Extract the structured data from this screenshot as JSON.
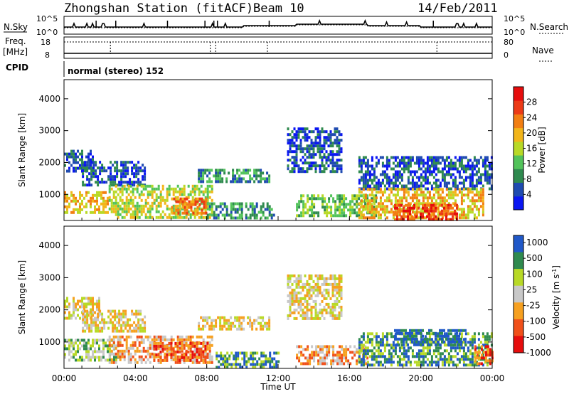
{
  "header": {
    "station": "Zhongshan Station (fitACF)",
    "beam": "Beam 10",
    "date": "14/Feb/2011"
  },
  "top_panels": {
    "nsky_label": "N.Sky",
    "nsky_ticks": [
      "10^5",
      "10^0"
    ],
    "nsearch_label": "N.Search",
    "nsearch_ticks": [
      "10^5",
      "10^0"
    ],
    "freq_label": "Freq.",
    "freq_unit": "[MHz]",
    "freq_ticks": [
      "18",
      "8"
    ],
    "nave_label": "Nave",
    "nave_ticks": [
      "80",
      "0"
    ],
    "cpid_label": "CPID",
    "cpid_text": "normal (stereo) 152"
  },
  "colors": {
    "power": [
      "#0a16f2",
      "#1f4bb0",
      "#2f8a4f",
      "#52c35a",
      "#b8d926",
      "#f2b51a",
      "#f27e12",
      "#ec3a16",
      "#e60d0d"
    ],
    "velocity": [
      "#e60d0d",
      "#f0501a",
      "#f6a020",
      "#c8c8c8",
      "#b8d926",
      "#2f8a4f",
      "#2058c8"
    ],
    "ground_scatter": "#c8c8c8"
  },
  "chart_data": [
    {
      "type": "heatmap",
      "name": "power",
      "ylabel": "Slant Range [km]",
      "yticks": [
        1000,
        2000,
        3000,
        4000
      ],
      "ylim": [
        180,
        4600
      ],
      "xlim_hours": [
        0,
        24
      ],
      "colorbar_label": "Power [dB]",
      "colorbar_ticks": [
        4,
        8,
        12,
        16,
        20,
        24,
        28
      ],
      "colorbar_range": [
        0,
        32
      ],
      "regions": [
        {
          "t": [
            0.0,
            1.6
          ],
          "r": [
            1700,
            2400
          ],
          "level": 1
        },
        {
          "t": [
            0.0,
            2.5
          ],
          "r": [
            450,
            1100
          ],
          "level": 5
        },
        {
          "t": [
            1.0,
            4.5
          ],
          "r": [
            1250,
            2050
          ],
          "level": 1
        },
        {
          "t": [
            2.5,
            8.3
          ],
          "r": [
            250,
            1300
          ],
          "level": 4
        },
        {
          "t": [
            6.0,
            8.0
          ],
          "r": [
            450,
            900
          ],
          "level": 6
        },
        {
          "t": [
            7.5,
            11.5
          ],
          "r": [
            1400,
            1800
          ],
          "level": 2
        },
        {
          "t": [
            8.0,
            11.8
          ],
          "r": [
            250,
            750
          ],
          "level": 2
        },
        {
          "t": [
            13.0,
            17.5
          ],
          "r": [
            300,
            1000
          ],
          "level": 3
        },
        {
          "t": [
            12.5,
            15.5
          ],
          "r": [
            1700,
            3100
          ],
          "level": 1
        },
        {
          "t": [
            16.5,
            24.0
          ],
          "r": [
            1200,
            2200
          ],
          "level": 1
        },
        {
          "t": [
            16.5,
            23.5
          ],
          "r": [
            300,
            1200
          ],
          "level": 5
        },
        {
          "t": [
            18.5,
            22.0
          ],
          "r": [
            250,
            700
          ],
          "level": 7
        }
      ]
    },
    {
      "type": "heatmap",
      "name": "velocity",
      "ylabel": "Slant Range [km]",
      "yticks": [
        1000,
        2000,
        3000,
        4000
      ],
      "ylim": [
        180,
        4600
      ],
      "xlim_hours": [
        0,
        24
      ],
      "xticks": [
        "00:00",
        "04:00",
        "08:00",
        "12:00",
        "16:00",
        "20:00",
        "00:00"
      ],
      "xlabel": "Time UT",
      "colorbar_label": "Velocity [m s",
      "colorbar_label_sup": "-1",
      "colorbar_label_end": "]",
      "colorbar_ticks": [
        "1000",
        "500",
        "100",
        "25",
        "-25",
        "-100",
        "-500",
        "-1000"
      ],
      "regions": [
        {
          "t": [
            0.0,
            2.0
          ],
          "r": [
            1700,
            2400
          ],
          "level": 3
        },
        {
          "t": [
            1.0,
            4.5
          ],
          "r": [
            1300,
            2000
          ],
          "level": 3
        },
        {
          "t": [
            0.0,
            3.0
          ],
          "r": [
            450,
            1100
          ],
          "level": 4
        },
        {
          "t": [
            2.5,
            8.3
          ],
          "r": [
            350,
            1200
          ],
          "level": 2
        },
        {
          "t": [
            5.0,
            8.0
          ],
          "r": [
            450,
            1000
          ],
          "level": 1
        },
        {
          "t": [
            7.5,
            11.5
          ],
          "r": [
            1400,
            1800
          ],
          "level": 3
        },
        {
          "t": [
            8.5,
            12.0
          ],
          "r": [
            250,
            700
          ],
          "level": 5
        },
        {
          "t": [
            13.0,
            17.0
          ],
          "r": [
            350,
            900
          ],
          "level": 2
        },
        {
          "t": [
            12.5,
            15.5
          ],
          "r": [
            1700,
            3100
          ],
          "level": 3
        },
        {
          "t": [
            16.5,
            24.0
          ],
          "r": [
            300,
            1300
          ],
          "level": 5
        },
        {
          "t": [
            18.5,
            22.5
          ],
          "r": [
            900,
            1400
          ],
          "level": 6
        },
        {
          "t": [
            23.0,
            24.0
          ],
          "r": [
            300,
            900
          ],
          "level": 1
        }
      ]
    }
  ]
}
